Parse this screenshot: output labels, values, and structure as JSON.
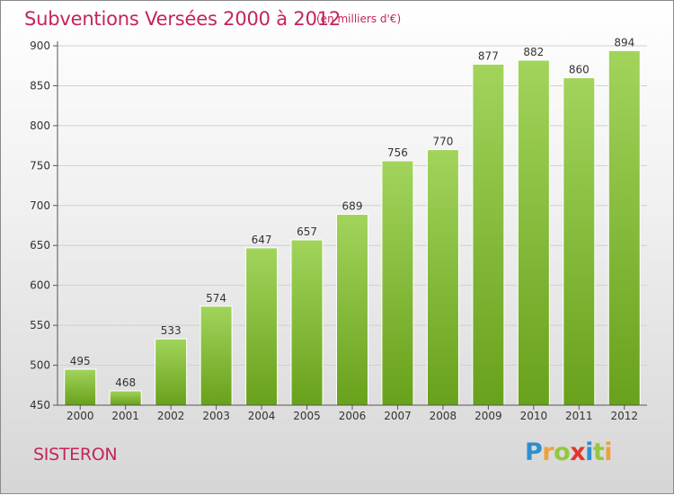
{
  "header": {
    "title": "Subventions Versées 2000 à 2012",
    "subtitle": "(en milliers d'€)"
  },
  "footer": {
    "city": "SISTERON",
    "brand": "Proxiti",
    "brand_letters": [
      {
        "char": "P",
        "color": "#2f8fce"
      },
      {
        "char": "r",
        "color": "#f0a13a"
      },
      {
        "char": "o",
        "color": "#93c83e"
      },
      {
        "char": "x",
        "color": "#e2372f"
      },
      {
        "char": "i",
        "color": "#2f8fce"
      },
      {
        "char": "t",
        "color": "#93c83e"
      },
      {
        "char": "i",
        "color": "#f0a13a"
      }
    ]
  },
  "colors": {
    "bar_light": "#a2d45c",
    "bar_dark": "#68a11b",
    "axis": "#555555",
    "grid": "#d0d0d0",
    "title": "#c4245a"
  },
  "chart_data": {
    "type": "bar",
    "title": "Subventions Versées 2000 à 2012",
    "subtitle": "(en milliers d'€)",
    "xlabel": "",
    "ylabel": "",
    "categories": [
      "2000",
      "2001",
      "2002",
      "2003",
      "2004",
      "2005",
      "2006",
      "2007",
      "2008",
      "2009",
      "2010",
      "2011",
      "2012"
    ],
    "values": [
      495,
      468,
      533,
      574,
      647,
      657,
      689,
      756,
      770,
      877,
      882,
      860,
      894
    ],
    "ylim": [
      450,
      900
    ],
    "yticks": [
      450,
      500,
      550,
      600,
      650,
      700,
      750,
      800,
      850,
      900
    ],
    "grid": true,
    "legend": "none"
  }
}
